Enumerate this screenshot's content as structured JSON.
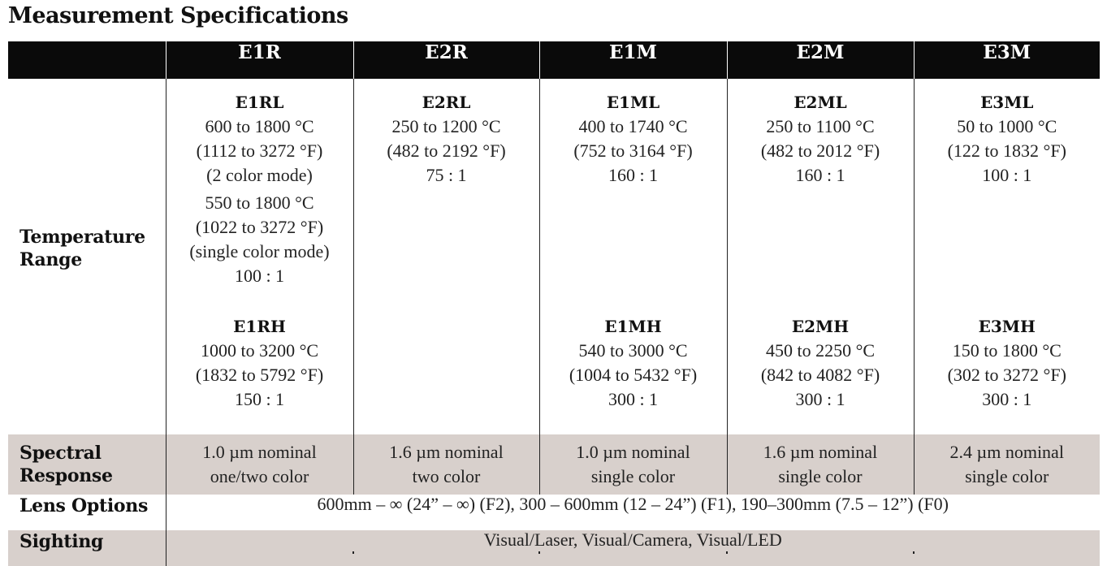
{
  "title": "Measurement Specifications",
  "columns": [
    "E1R",
    "E2R",
    "E1M",
    "E2M",
    "E3M"
  ],
  "rows": {
    "temperature": {
      "label_line1": "Temperature",
      "label_line2": "Range",
      "cells": [
        {
          "low": {
            "model": "E1RL",
            "lines": [
              "600 to 1800 °C",
              "(1112 to 3272 °F)",
              "(2 color mode)"
            ]
          },
          "mid": {
            "lines": [
              "550 to 1800 °C",
              "(1022 to 3272 °F)",
              "(single color mode)",
              "100 : 1"
            ]
          },
          "high": {
            "model": "E1RH",
            "lines": [
              "1000 to 3200 °C",
              "(1832 to 5792 °F)",
              "150 : 1"
            ]
          }
        },
        {
          "low": {
            "model": "E2RL",
            "lines": [
              "250 to 1200 °C",
              "(482 to 2192 °F)",
              "75 : 1"
            ]
          }
        },
        {
          "low": {
            "model": "E1ML",
            "lines": [
              "400 to 1740 °C",
              "(752 to 3164 °F)",
              "160 : 1"
            ]
          },
          "high": {
            "model": "E1MH",
            "lines": [
              "540 to 3000 °C",
              "(1004 to 5432 °F)",
              "300 : 1"
            ]
          }
        },
        {
          "low": {
            "model": "E2ML",
            "lines": [
              "250 to 1100 °C",
              "(482 to 2012 °F)",
              "160 : 1"
            ]
          },
          "high": {
            "model": "E2MH",
            "lines": [
              "450 to 2250 °C",
              "(842 to 4082 °F)",
              "300 : 1"
            ]
          }
        },
        {
          "low": {
            "model": "E3ML",
            "lines": [
              "50 to 1000 °C",
              "(122 to 1832 °F)",
              "100 : 1"
            ]
          },
          "high": {
            "model": "E3MH",
            "lines": [
              "150 to 1800 °C",
              "(302 to 3272 °F)",
              "300 : 1"
            ]
          }
        }
      ]
    },
    "spectral": {
      "label_line1": "Spectral",
      "label_line2": "Response",
      "cells": [
        [
          "1.0 µm nominal",
          "one/two color"
        ],
        [
          "1.6 µm nominal",
          "two color"
        ],
        [
          "1.0 µm nominal",
          "single color"
        ],
        [
          "1.6 µm nominal",
          "single color"
        ],
        [
          "2.4 µm nominal",
          "single color"
        ]
      ]
    },
    "lens": {
      "label": "Lens Options",
      "value": "600mm – ∞  (24” – ∞) (F2), 300 – 600mm (12 – 24”) (F1), 190–300mm (7.5 – 12”) (F0)"
    },
    "sighting": {
      "label": "Sighting",
      "value": "Visual/Laser, Visual/Camera, Visual/LED"
    }
  }
}
